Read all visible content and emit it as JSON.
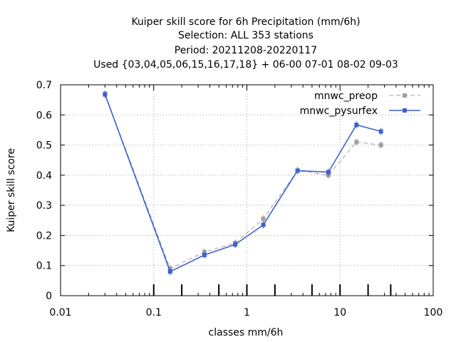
{
  "chart_data": {
    "type": "line",
    "title_lines": [
      "Kuiper skill score  for 6h Precipitation (mm/6h)",
      "Selection: ALL    353 stations",
      "Period: 20211208-20220117",
      "Used {03,04,05,06,15,16,17,18} + 06-00 07-01 08-02 09-03"
    ],
    "xlabel": "classes mm/6h",
    "ylabel": "Kuiper skill score",
    "x_scale": "log",
    "xlim": [
      0.01,
      100
    ],
    "ylim": [
      0,
      0.7
    ],
    "x_ticks": [
      0.01,
      0.1,
      1,
      10,
      100
    ],
    "x_tick_labels": [
      "0.01",
      "0.1",
      "1",
      "10",
      "100"
    ],
    "y_ticks": [
      0,
      0.1,
      0.2,
      0.3,
      0.4,
      0.5,
      0.6,
      0.7
    ],
    "y_tick_labels": [
      "0",
      "0.1",
      "0.2",
      "0.3",
      "0.4",
      "0.5",
      "0.6",
      "0.7"
    ],
    "grid": true,
    "legend_position": "top-right",
    "class_markers_x": [
      0.1,
      0.2,
      0.5,
      1,
      2,
      5,
      10,
      20,
      35
    ],
    "series": [
      {
        "name": "mnwc_preop",
        "color": "#a0a0a0",
        "style": "dashed",
        "x": [
          0.03,
          0.15,
          0.35,
          0.75,
          1.5,
          3.5,
          7.5,
          15,
          27.5
        ],
        "y": [
          0.67,
          0.09,
          0.145,
          0.175,
          0.255,
          0.415,
          0.4,
          0.51,
          0.5
        ]
      },
      {
        "name": "mnwc_pysurfex",
        "color": "#4060d0",
        "style": "solid",
        "x": [
          0.03,
          0.15,
          0.35,
          0.75,
          1.5,
          3.5,
          7.5,
          15,
          27.5
        ],
        "y": [
          0.668,
          0.08,
          0.135,
          0.17,
          0.235,
          0.415,
          0.41,
          0.567,
          0.545
        ]
      }
    ]
  }
}
